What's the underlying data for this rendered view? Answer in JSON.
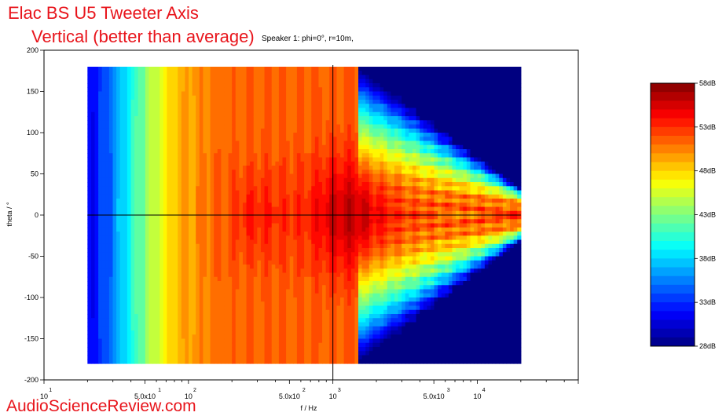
{
  "title_line1": "Elac BS U5 Tweeter Axis",
  "title_line2": "Vertical (better than average)",
  "subtitle": "Speaker 1: phi=0°, r=10m,",
  "watermark": "AudioScienceReview.com",
  "chart_data": {
    "type": "heatmap",
    "title": "Elac BS U5 Tweeter Axis Vertical (better than average)",
    "subtitle": "Speaker 1: phi=0°, r=10m,",
    "xlabel": "f / Hz",
    "ylabel": "theta / °",
    "x_scale": "log",
    "xlim": [
      10,
      50000
    ],
    "ylim": [
      -200,
      200
    ],
    "data_x_range": [
      20,
      20000
    ],
    "data_y_range": [
      -180,
      180
    ],
    "x_ticks": [
      {
        "value": 10,
        "base": "10",
        "exp": "1"
      },
      {
        "value": 50,
        "base": "5.0x10",
        "exp": "1"
      },
      {
        "value": 100,
        "base": "10",
        "exp": "2"
      },
      {
        "value": 500,
        "base": "5.0x10",
        "exp": "2"
      },
      {
        "value": 1000,
        "base": "10",
        "exp": "3"
      },
      {
        "value": 5000,
        "base": "5.0x10",
        "exp": "3"
      },
      {
        "value": 10000,
        "base": "10",
        "exp": "4"
      }
    ],
    "y_ticks": [
      "200",
      "150",
      "100",
      "50",
      "0",
      "-50",
      "-100",
      "-150",
      "-200"
    ],
    "y_tick_values": [
      200,
      150,
      100,
      50,
      0,
      -50,
      -100,
      -150,
      -200
    ],
    "crosshair": {
      "f": 1000,
      "theta": 0
    },
    "colorbar": {
      "min": 28,
      "max": 58,
      "labels": [
        "58dB",
        "53dB",
        "48dB",
        "43dB",
        "38dB",
        "33dB",
        "28dB"
      ],
      "label_values": [
        58,
        53,
        48,
        43,
        38,
        33,
        28
      ],
      "colormap": "jet"
    },
    "response_model": {
      "low_corner_hz": 40,
      "plateau_db": 51.5,
      "peak_db": 57,
      "peak_hz": 1300,
      "beaming_start_hz": 1500,
      "narrow_lobe_width_deg_at_20k": 25
    }
  },
  "colors": {
    "title": "#e8141b",
    "axis": "#000000"
  }
}
